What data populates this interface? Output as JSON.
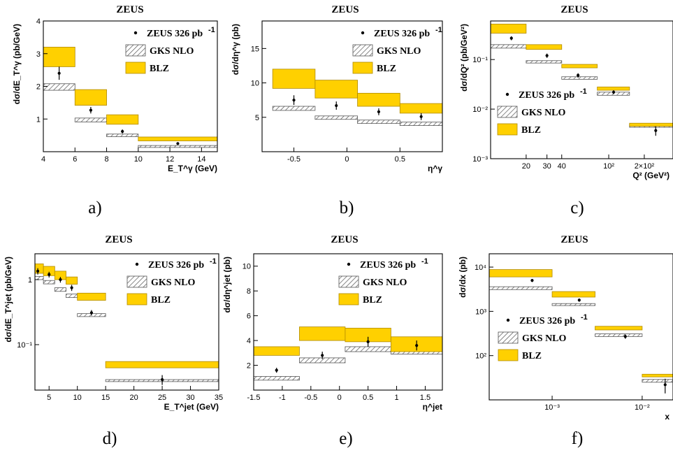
{
  "colors": {
    "blz_fill": "#FFD000",
    "blz_edge": "#B08A00",
    "nlo_hatch": "#555555",
    "data_point": "#000000",
    "axis": "#000000"
  },
  "chart_data": [
    {
      "panel_label": "a)",
      "title": "ZEUS",
      "type": "bar",
      "xlabel": "E_T^γ (GeV)",
      "ylabel": "dσ/dE_T^γ (pb/GeV)",
      "xlim": [
        4,
        15
      ],
      "ylim": [
        0,
        4
      ],
      "log_x": false,
      "log_y": false,
      "xticks": [
        4,
        6,
        8,
        10,
        12,
        14
      ],
      "xticklabels": [
        "4",
        "6",
        "8",
        "10",
        "12",
        "14"
      ],
      "yticks": [
        1,
        2,
        3,
        4
      ],
      "yticklabels": [
        "1",
        "2",
        "3",
        "4"
      ],
      "legend": {
        "position": "top-right",
        "entries": [
          "ZEUS 326 pb",
          "GKS NLO",
          "BLZ"
        ],
        "data_superscript": "-1"
      },
      "series": [
        {
          "name": "ZEUS 326 pb",
          "kind": "points",
          "x": [
            5,
            7,
            9,
            12.5
          ],
          "y": [
            2.4,
            1.27,
            0.62,
            0.25
          ],
          "err": [
            0.2,
            0.1,
            0.06,
            0.03
          ]
        },
        {
          "name": "GKS NLO",
          "kind": "bands",
          "bins": [
            [
              4,
              6
            ],
            [
              6,
              8
            ],
            [
              8,
              10
            ],
            [
              10,
              15
            ]
          ],
          "lo": [
            1.88,
            0.91,
            0.46,
            0.13
          ],
          "hi": [
            2.08,
            1.03,
            0.54,
            0.19
          ]
        },
        {
          "name": "BLZ",
          "kind": "bands",
          "bins": [
            [
              4,
              6
            ],
            [
              6,
              8
            ],
            [
              8,
              10
            ],
            [
              10,
              15
            ]
          ],
          "lo": [
            2.6,
            1.42,
            0.84,
            0.33
          ],
          "hi": [
            3.2,
            1.9,
            1.13,
            0.45
          ]
        }
      ]
    },
    {
      "panel_label": "b)",
      "title": "ZEUS",
      "type": "bar",
      "xlabel": "η^γ",
      "ylabel": "dσ/dη^γ (pb)",
      "xlim": [
        -0.8,
        0.9
      ],
      "ylim": [
        0,
        19
      ],
      "log_x": false,
      "log_y": false,
      "xticks": [
        -0.5,
        0,
        0.5
      ],
      "xticklabels": [
        "-0.5",
        "0",
        "0.5"
      ],
      "yticks": [
        5,
        10,
        15
      ],
      "yticklabels": [
        "5",
        "10",
        "15"
      ],
      "legend": {
        "position": "top-right",
        "entries": [
          "ZEUS 326 pb",
          "GKS NLO",
          "BLZ"
        ],
        "data_superscript": "-1"
      },
      "series": [
        {
          "name": "ZEUS 326 pb",
          "kind": "points",
          "x": [
            -0.5,
            -0.1,
            0.3,
            0.7
          ],
          "y": [
            7.5,
            6.7,
            5.8,
            5.1
          ],
          "err": [
            0.7,
            0.6,
            0.5,
            0.5
          ]
        },
        {
          "name": "GKS NLO",
          "kind": "bands",
          "bins": [
            [
              -0.7,
              -0.3
            ],
            [
              -0.3,
              0.1
            ],
            [
              0.1,
              0.5
            ],
            [
              0.5,
              0.9
            ]
          ],
          "lo": [
            6.0,
            4.7,
            4.1,
            3.8
          ],
          "hi": [
            6.6,
            5.2,
            4.6,
            4.3
          ]
        },
        {
          "name": "BLZ",
          "kind": "bands",
          "bins": [
            [
              -0.7,
              -0.3
            ],
            [
              -0.3,
              0.1
            ],
            [
              0.1,
              0.5
            ],
            [
              0.5,
              0.9
            ]
          ],
          "lo": [
            9.2,
            7.8,
            6.6,
            5.6
          ],
          "hi": [
            12.0,
            10.4,
            8.5,
            7.0
          ]
        }
      ]
    },
    {
      "panel_label": "c)",
      "title": "ZEUS",
      "type": "bar",
      "xlabel": "Q² (GeV²)",
      "ylabel": "dσ/dQ² (pb/GeV²)",
      "xlim": [
        10,
        350
      ],
      "ylim": [
        0.001,
        0.6
      ],
      "log_x": true,
      "log_y": true,
      "xticks": [
        20,
        30,
        40,
        100,
        200
      ],
      "xticklabels": [
        "20",
        "30",
        "40",
        "10²",
        "2×10²"
      ],
      "yticks": [
        0.001,
        0.01,
        0.1
      ],
      "yticklabels": [
        "10⁻³",
        "10⁻²",
        "10⁻¹"
      ],
      "legend": {
        "position": "bottom-left",
        "entries": [
          "ZEUS 326 pb",
          "GKS NLO",
          "BLZ"
        ],
        "data_superscript": "-1"
      },
      "series": [
        {
          "name": "ZEUS 326 pb",
          "kind": "points",
          "x": [
            15,
            30,
            55,
            110,
            250
          ],
          "y": [
            0.27,
            0.12,
            0.048,
            0.022,
            0.0037
          ],
          "err": [
            0.025,
            0.012,
            0.005,
            0.002,
            0.0008
          ]
        },
        {
          "name": "GKS NLO",
          "kind": "bands",
          "bins": [
            [
              10,
              20
            ],
            [
              20,
              40
            ],
            [
              40,
              80
            ],
            [
              80,
              150
            ],
            [
              150,
              350
            ]
          ],
          "lo": [
            0.17,
            0.085,
            0.04,
            0.019,
            0.0043
          ],
          "hi": [
            0.2,
            0.095,
            0.045,
            0.022,
            0.0049
          ]
        },
        {
          "name": "BLZ",
          "kind": "bands",
          "bins": [
            [
              10,
              20
            ],
            [
              20,
              40
            ],
            [
              40,
              80
            ],
            [
              80,
              150
            ],
            [
              150,
              350
            ]
          ],
          "lo": [
            0.34,
            0.16,
            0.068,
            0.024,
            0.0045
          ],
          "hi": [
            0.52,
            0.2,
            0.08,
            0.028,
            0.0052
          ]
        }
      ]
    },
    {
      "panel_label": "d)",
      "title": "ZEUS",
      "type": "bar",
      "xlabel": "E_T^jet (GeV)",
      "ylabel": "dσ/dE_T^jet (pb/GeV)",
      "xlim": [
        2.5,
        35
      ],
      "ylim": [
        0.02,
        2.5
      ],
      "log_x": false,
      "log_y": true,
      "xticks": [
        5,
        10,
        15,
        20,
        25,
        30,
        35
      ],
      "xticklabels": [
        "5",
        "10",
        "15",
        "20",
        "25",
        "30",
        "35"
      ],
      "yticks": [
        0.1,
        1
      ],
      "yticklabels": [
        "10⁻¹",
        "1"
      ],
      "legend": {
        "position": "top-right",
        "entries": [
          "ZEUS 326 pb",
          "GKS NLO",
          "BLZ"
        ],
        "data_superscript": "-1"
      },
      "series": [
        {
          "name": "ZEUS 326 pb",
          "kind": "points",
          "x": [
            3,
            5,
            7,
            9,
            12.5,
            25
          ],
          "y": [
            1.35,
            1.2,
            1.0,
            0.75,
            0.31,
            0.029
          ],
          "err": [
            0.15,
            0.12,
            0.1,
            0.08,
            0.03,
            0.005
          ]
        },
        {
          "name": "GKS NLO",
          "kind": "bands",
          "bins": [
            [
              2.5,
              4
            ],
            [
              4,
              6
            ],
            [
              6,
              8
            ],
            [
              8,
              10
            ],
            [
              10,
              15
            ],
            [
              15,
              35
            ]
          ],
          "lo": [
            1.0,
            0.86,
            0.66,
            0.53,
            0.27,
            0.027
          ],
          "hi": [
            1.12,
            0.97,
            0.75,
            0.6,
            0.3,
            0.029
          ]
        },
        {
          "name": "BLZ",
          "kind": "bands",
          "bins": [
            [
              2.5,
              4
            ],
            [
              4,
              6
            ],
            [
              6,
              8
            ],
            [
              8,
              10
            ],
            [
              10,
              15
            ],
            [
              15,
              35
            ]
          ],
          "lo": [
            1.25,
            1.15,
            1.0,
            0.85,
            0.48,
            0.044
          ],
          "hi": [
            1.75,
            1.6,
            1.35,
            1.1,
            0.62,
            0.055
          ]
        }
      ]
    },
    {
      "panel_label": "e)",
      "title": "ZEUS",
      "type": "bar",
      "xlabel": "η^jet",
      "ylabel": "dσ/dη^jet (pb)",
      "xlim": [
        -1.5,
        1.8
      ],
      "ylim": [
        0,
        11
      ],
      "log_x": false,
      "log_y": false,
      "xticks": [
        -1.5,
        -1,
        -0.5,
        0,
        0.5,
        1,
        1.5
      ],
      "xticklabels": [
        "-1.5",
        "-1",
        "-0.5",
        "0",
        "0.5",
        "1",
        "1.5"
      ],
      "yticks": [
        2,
        4,
        6,
        8,
        10
      ],
      "yticklabels": [
        "2",
        "4",
        "6",
        "8",
        "10"
      ],
      "legend": {
        "position": "top-right",
        "entries": [
          "ZEUS 326 pb",
          "GKS NLO",
          "BLZ"
        ],
        "data_superscript": "-1"
      },
      "series": [
        {
          "name": "ZEUS 326 pb",
          "kind": "points",
          "x": [
            -1.1,
            -0.3,
            0.5,
            1.35
          ],
          "y": [
            1.6,
            2.8,
            3.9,
            3.6
          ],
          "err": [
            0.2,
            0.3,
            0.4,
            0.4
          ]
        },
        {
          "name": "GKS NLO",
          "kind": "bands",
          "bins": [
            [
              -1.5,
              -0.7
            ],
            [
              -0.7,
              0.1
            ],
            [
              0.1,
              0.9
            ],
            [
              0.9,
              1.8
            ]
          ],
          "lo": [
            0.8,
            2.2,
            3.1,
            2.9
          ],
          "hi": [
            1.1,
            2.6,
            3.5,
            3.3
          ]
        },
        {
          "name": "BLZ",
          "kind": "bands",
          "bins": [
            [
              -1.5,
              -0.7
            ],
            [
              -0.7,
              0.1
            ],
            [
              0.1,
              0.9
            ],
            [
              0.9,
              1.8
            ]
          ],
          "lo": [
            2.8,
            4.0,
            3.9,
            3.1
          ],
          "hi": [
            3.5,
            5.1,
            5.0,
            4.3
          ]
        }
      ]
    },
    {
      "panel_label": "f)",
      "title": "ZEUS",
      "type": "bar",
      "xlabel": "x",
      "ylabel": "dσ/dx (pb)",
      "xlim": [
        0.0002,
        0.022
      ],
      "ylim": [
        10,
        20000
      ],
      "log_x": true,
      "log_y": true,
      "xticks": [
        0.001,
        0.01
      ],
      "xticklabels": [
        "10⁻³",
        "10⁻²"
      ],
      "yticks": [
        100,
        1000,
        10000
      ],
      "yticklabels": [
        "10²",
        "10³",
        "10⁴"
      ],
      "legend": {
        "position": "middle-left",
        "entries": [
          "ZEUS 326 pb",
          "GKS NLO",
          "BLZ"
        ],
        "data_superscript": "-1"
      },
      "series": [
        {
          "name": "ZEUS 326 pb",
          "kind": "points",
          "x": [
            0.0006,
            0.002,
            0.0065,
            0.018
          ],
          "y": [
            5000,
            1800,
            270,
            22
          ],
          "err": [
            400,
            150,
            30,
            8
          ]
        },
        {
          "name": "GKS NLO",
          "kind": "bands",
          "bins": [
            [
              0.0002,
              0.001
            ],
            [
              0.001,
              0.003
            ],
            [
              0.003,
              0.01
            ],
            [
              0.01,
              0.022
            ]
          ],
          "lo": [
            3100,
            1350,
            270,
            25
          ],
          "hi": [
            3600,
            1500,
            310,
            29
          ]
        },
        {
          "name": "BLZ",
          "kind": "bands",
          "bins": [
            [
              0.0002,
              0.001
            ],
            [
              0.001,
              0.003
            ],
            [
              0.003,
              0.01
            ],
            [
              0.01,
              0.022
            ]
          ],
          "lo": [
            6000,
            2100,
            380,
            33
          ],
          "hi": [
            8800,
            2800,
            460,
            38
          ]
        }
      ]
    }
  ]
}
